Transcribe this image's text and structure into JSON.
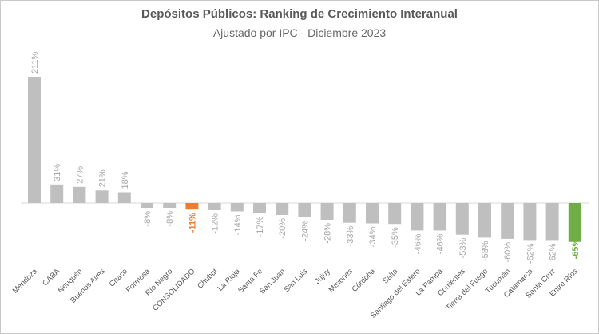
{
  "chart_data": {
    "type": "bar",
    "title": "Depósitos Públicos: Ranking de Crecimiento Interanual",
    "subtitle": "Ajustado por IPC - Diciembre 2023",
    "xlabel": "",
    "ylabel": "",
    "grid": false,
    "categories": [
      "Mendoza",
      "CABA",
      "Neuquén",
      "Buenos Aires",
      "Chaco",
      "Formosa",
      "Río Negro",
      "CONSOLIDADO",
      "Chubut",
      "La Rioja",
      "Santa Fe",
      "San Juan",
      "San Luis",
      "Jujuy",
      "Misiones",
      "Córdoba",
      "Salta",
      "Santiago del Estero",
      "La Pampa",
      "Corrientes",
      "Tierra del Fuego",
      "Tucumán",
      "Catamarca",
      "Santa Cruz",
      "Entre Ríos"
    ],
    "values": [
      211,
      31,
      27,
      21,
      18,
      -8,
      -8,
      -11,
      -12,
      -14,
      -17,
      -20,
      -24,
      -28,
      -33,
      -34,
      -35,
      -46,
      -46,
      -53,
      -58,
      -60,
      -62,
      -62,
      -65
    ],
    "value_labels": [
      "211%",
      "31%",
      "27%",
      "21%",
      "18%",
      "-8%",
      "-8%",
      "-11%",
      "-12%",
      "-14%",
      "-17%",
      "-20%",
      "-24%",
      "-28%",
      "-33%",
      "-34%",
      "-35%",
      "-46%",
      "-46%",
      "-53%",
      "-58%",
      "-60%",
      "-62%",
      "-62%",
      "-65%"
    ],
    "highlights": {
      "CONSOLIDADO": "#ed7d31",
      "Entre Ríos": "#70ad47"
    },
    "bar_color": "#bfbfbf",
    "ylim": [
      -65,
      211
    ]
  }
}
